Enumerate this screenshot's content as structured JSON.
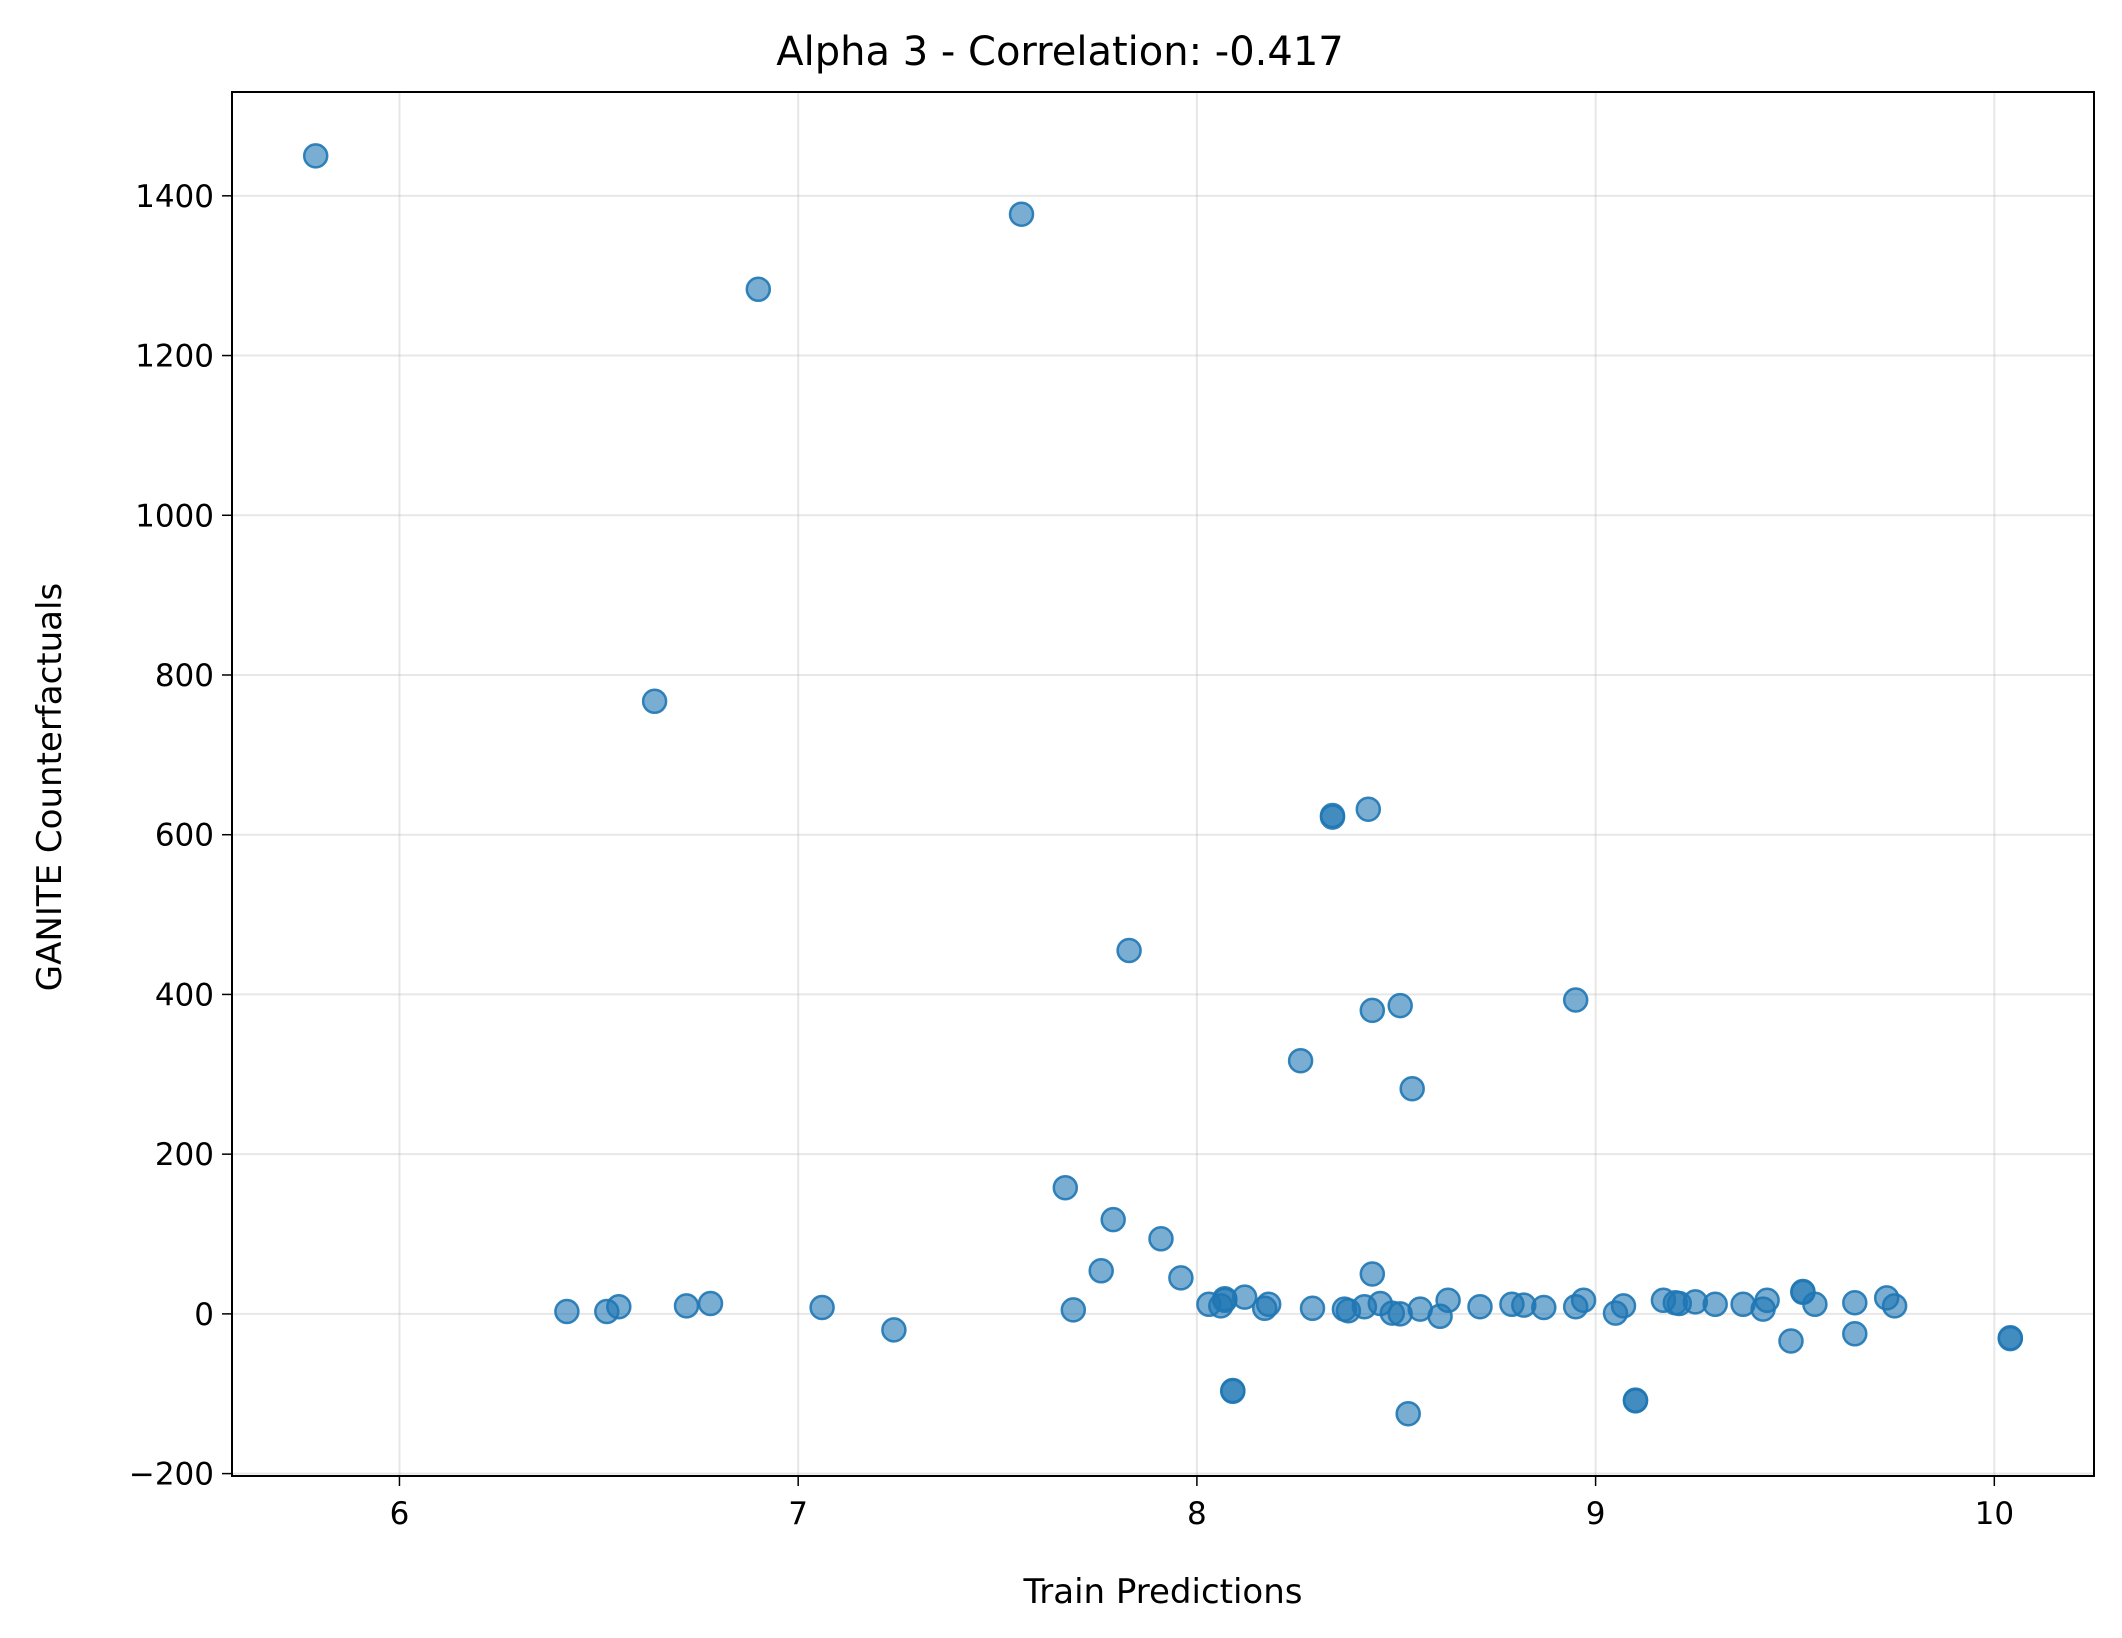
{
  "chart_data": {
    "type": "scatter",
    "title": "Alpha 3 - Correlation: -0.417",
    "xlabel": "Train Predictions",
    "ylabel": "GANITE Counterfactuals",
    "xlim": [
      5.58,
      10.25
    ],
    "ylim": [
      -203,
      1530
    ],
    "xticks": [
      6,
      7,
      8,
      9,
      10
    ],
    "yticks": [
      -200,
      0,
      200,
      400,
      600,
      800,
      1000,
      1200,
      1400
    ],
    "xtick_labels": [
      "6",
      "7",
      "8",
      "9",
      "10"
    ],
    "ytick_labels": [
      "−200",
      "0",
      "200",
      "400",
      "600",
      "800",
      "1000",
      "1200",
      "1400"
    ],
    "grid": true,
    "colors": {
      "point": "#1f77b4"
    },
    "points": [
      {
        "x": 5.79,
        "y": 1450
      },
      {
        "x": 6.42,
        "y": 3
      },
      {
        "x": 6.52,
        "y": 3
      },
      {
        "x": 6.55,
        "y": 9
      },
      {
        "x": 6.64,
        "y": 767
      },
      {
        "x": 6.72,
        "y": 10
      },
      {
        "x": 6.78,
        "y": 13
      },
      {
        "x": 6.9,
        "y": 1283
      },
      {
        "x": 7.06,
        "y": 8
      },
      {
        "x": 7.24,
        "y": -20
      },
      {
        "x": 7.56,
        "y": 1377
      },
      {
        "x": 7.67,
        "y": 158
      },
      {
        "x": 7.69,
        "y": 5
      },
      {
        "x": 7.76,
        "y": 54
      },
      {
        "x": 7.79,
        "y": 118
      },
      {
        "x": 7.83,
        "y": 455
      },
      {
        "x": 7.91,
        "y": 94
      },
      {
        "x": 7.96,
        "y": 45
      },
      {
        "x": 8.03,
        "y": 12
      },
      {
        "x": 8.06,
        "y": 10
      },
      {
        "x": 8.07,
        "y": 17
      },
      {
        "x": 8.07,
        "y": 19
      },
      {
        "x": 8.09,
        "y": -97
      },
      {
        "x": 8.09,
        "y": -96
      },
      {
        "x": 8.12,
        "y": 21
      },
      {
        "x": 8.17,
        "y": 7
      },
      {
        "x": 8.18,
        "y": 12
      },
      {
        "x": 8.26,
        "y": 317
      },
      {
        "x": 8.29,
        "y": 7
      },
      {
        "x": 8.34,
        "y": 624
      },
      {
        "x": 8.34,
        "y": 622
      },
      {
        "x": 8.37,
        "y": 6
      },
      {
        "x": 8.38,
        "y": 4
      },
      {
        "x": 8.42,
        "y": 9
      },
      {
        "x": 8.43,
        "y": 632
      },
      {
        "x": 8.44,
        "y": 380
      },
      {
        "x": 8.44,
        "y": 50
      },
      {
        "x": 8.46,
        "y": 13
      },
      {
        "x": 8.49,
        "y": 1
      },
      {
        "x": 8.51,
        "y": 386
      },
      {
        "x": 8.51,
        "y": 0
      },
      {
        "x": 8.53,
        "y": -125
      },
      {
        "x": 8.54,
        "y": 282
      },
      {
        "x": 8.56,
        "y": 6
      },
      {
        "x": 8.61,
        "y": -3
      },
      {
        "x": 8.63,
        "y": 17
      },
      {
        "x": 8.71,
        "y": 9
      },
      {
        "x": 8.79,
        "y": 12
      },
      {
        "x": 8.82,
        "y": 11
      },
      {
        "x": 8.87,
        "y": 8
      },
      {
        "x": 8.95,
        "y": 393
      },
      {
        "x": 8.95,
        "y": 9
      },
      {
        "x": 8.97,
        "y": 17
      },
      {
        "x": 9.05,
        "y": 1
      },
      {
        "x": 9.07,
        "y": 10
      },
      {
        "x": 9.1,
        "y": -109
      },
      {
        "x": 9.1,
        "y": -108
      },
      {
        "x": 9.17,
        "y": 17
      },
      {
        "x": 9.2,
        "y": 14
      },
      {
        "x": 9.21,
        "y": 13
      },
      {
        "x": 9.25,
        "y": 15
      },
      {
        "x": 9.3,
        "y": 12
      },
      {
        "x": 9.37,
        "y": 12
      },
      {
        "x": 9.42,
        "y": 6
      },
      {
        "x": 9.43,
        "y": 17
      },
      {
        "x": 9.49,
        "y": -34
      },
      {
        "x": 9.52,
        "y": 28
      },
      {
        "x": 9.52,
        "y": 27
      },
      {
        "x": 9.55,
        "y": 12
      },
      {
        "x": 9.65,
        "y": 14
      },
      {
        "x": 9.65,
        "y": -25
      },
      {
        "x": 9.73,
        "y": 20
      },
      {
        "x": 9.75,
        "y": 10
      },
      {
        "x": 10.04,
        "y": -30
      },
      {
        "x": 10.04,
        "y": -31
      }
    ]
  }
}
